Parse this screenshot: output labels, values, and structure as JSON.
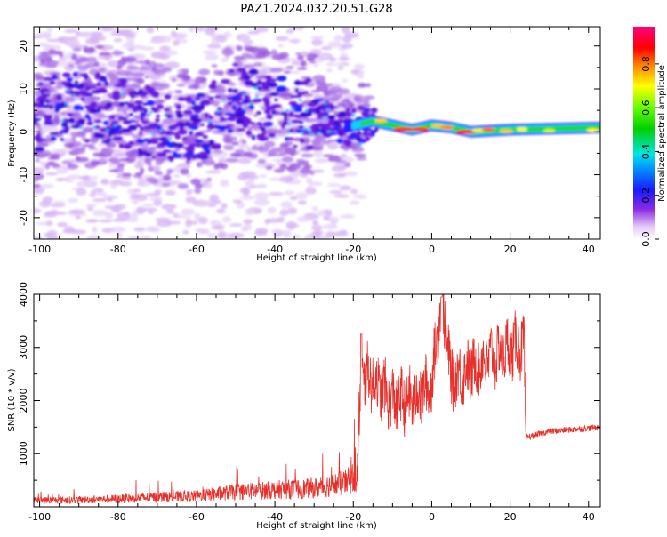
{
  "title": "PAZ1.2024.032.20.51.G28",
  "chart_data": [
    {
      "type": "heatmap",
      "xlabel": "Height of straight line (km)",
      "ylabel": "Frequency (Hz)",
      "xlim": [
        -101.5,
        43
      ],
      "ylim": [
        -25,
        24.5
      ],
      "x_ticks": [
        "-100",
        "-80",
        "-60",
        "-40",
        "-20",
        "0",
        "20",
        "40"
      ],
      "y_ticks": [
        "-20",
        "-10",
        "0",
        "10",
        "20"
      ],
      "colorbar": {
        "label": "Normalized spectral amplitude",
        "range": [
          0,
          0.97
        ],
        "ticks": [
          "0.0",
          "0.2",
          "0.4",
          "0.6",
          "0.8"
        ],
        "colormap": "white-purple-blue-cyan-green-yellow-orange-red-magenta"
      },
      "signal_track": {
        "description_points": [
          {
            "x": -100,
            "center_hz": 5
          },
          {
            "x": -85,
            "center_hz": 6
          },
          {
            "x": -75,
            "center_hz": 3
          },
          {
            "x": -60,
            "center_hz": 0
          },
          {
            "x": -50,
            "center_hz": 8
          },
          {
            "x": -40,
            "center_hz": 5
          },
          {
            "x": -30,
            "center_hz": 4
          },
          {
            "x": -22,
            "center_hz": 1
          },
          {
            "x": -15,
            "center_hz": 2.5
          },
          {
            "x": -5,
            "center_hz": 0.5
          },
          {
            "x": 0,
            "center_hz": 1.5
          },
          {
            "x": 5,
            "center_hz": 1
          },
          {
            "x": 10,
            "center_hz": 0
          },
          {
            "x": 20,
            "center_hz": 0.5
          },
          {
            "x": 43,
            "center_hz": 1
          }
        ]
      }
    },
    {
      "type": "line",
      "xlabel": "Height of straight line (km)",
      "ylabel": "SNR (10 * v/v)",
      "xlim": [
        -101.5,
        43
      ],
      "ylim": [
        0,
        4000
      ],
      "x_ticks": [
        "-100",
        "-80",
        "-60",
        "-40",
        "-20",
        "0",
        "20",
        "40"
      ],
      "y_ticks": [
        "1000",
        "2000",
        "3000",
        "4000"
      ],
      "color": "#e8302a",
      "envelope": {
        "x": [
          -101.5,
          -90,
          -80,
          -70,
          -60,
          -50,
          -40,
          -30,
          -22,
          -19,
          -18,
          -15,
          -10,
          -5,
          0,
          2.5,
          5,
          10,
          15,
          20,
          23.5,
          24,
          30,
          43
        ],
        "y": [
          120,
          130,
          150,
          180,
          200,
          280,
          320,
          350,
          450,
          600,
          2500,
          2400,
          2000,
          2000,
          2300,
          4000,
          2400,
          2600,
          2800,
          3000,
          3050,
          1300,
          1420,
          1500
        ]
      }
    }
  ]
}
